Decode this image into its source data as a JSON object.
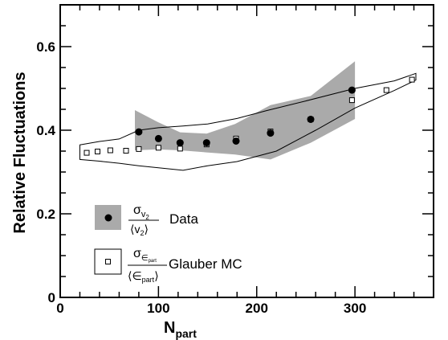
{
  "chart_data": {
    "type": "scatter",
    "xlabel": "N",
    "xlabel_sub": "part",
    "ylabel": "Relative Fluctuations",
    "xlim": [
      0,
      380
    ],
    "ylim": [
      0,
      0.7
    ],
    "x_ticks": [
      0,
      100,
      200,
      300
    ],
    "x_tick_labels": [
      "0",
      "100",
      "200",
      "300"
    ],
    "y_ticks": [
      0,
      0.2,
      0.4,
      0.6
    ],
    "y_tick_labels": [
      "0",
      "0.2",
      "0.4",
      "0.6"
    ],
    "series": [
      {
        "name": "Data",
        "marker": "filled-circle",
        "points": [
          {
            "x": 80,
            "y": 0.396
          },
          {
            "x": 100,
            "y": 0.38
          },
          {
            "x": 122,
            "y": 0.37
          },
          {
            "x": 149,
            "y": 0.37
          },
          {
            "x": 179,
            "y": 0.374
          },
          {
            "x": 214,
            "y": 0.393
          },
          {
            "x": 255,
            "y": 0.426
          },
          {
            "x": 297,
            "y": 0.496
          }
        ],
        "band_upper": [
          {
            "x": 76,
            "y": 0.448
          },
          {
            "x": 99,
            "y": 0.42
          },
          {
            "x": 122,
            "y": 0.395
          },
          {
            "x": 149,
            "y": 0.392
          },
          {
            "x": 178,
            "y": 0.415
          },
          {
            "x": 214,
            "y": 0.46
          },
          {
            "x": 255,
            "y": 0.482
          },
          {
            "x": 300,
            "y": 0.565
          }
        ],
        "band_lower": [
          {
            "x": 76,
            "y": 0.352
          },
          {
            "x": 99,
            "y": 0.354
          },
          {
            "x": 122,
            "y": 0.352
          },
          {
            "x": 149,
            "y": 0.347
          },
          {
            "x": 178,
            "y": 0.342
          },
          {
            "x": 214,
            "y": 0.33
          },
          {
            "x": 255,
            "y": 0.37
          },
          {
            "x": 300,
            "y": 0.427
          }
        ],
        "color": "#aaaaaa"
      },
      {
        "name": "Glauber MC",
        "marker": "open-square",
        "points": [
          {
            "x": 27,
            "y": 0.346
          },
          {
            "x": 38,
            "y": 0.349
          },
          {
            "x": 51,
            "y": 0.352
          },
          {
            "x": 67,
            "y": 0.351
          },
          {
            "x": 80,
            "y": 0.355
          },
          {
            "x": 100,
            "y": 0.358
          },
          {
            "x": 122,
            "y": 0.356
          },
          {
            "x": 149,
            "y": 0.366
          },
          {
            "x": 179,
            "y": 0.38
          },
          {
            "x": 214,
            "y": 0.397
          },
          {
            "x": 255,
            "y": 0.426
          },
          {
            "x": 297,
            "y": 0.472
          },
          {
            "x": 332,
            "y": 0.496
          },
          {
            "x": 358,
            "y": 0.521
          }
        ],
        "band_upper": [
          {
            "x": 20,
            "y": 0.365
          },
          {
            "x": 40,
            "y": 0.373
          },
          {
            "x": 60,
            "y": 0.379
          },
          {
            "x": 80,
            "y": 0.4
          },
          {
            "x": 100,
            "y": 0.406
          },
          {
            "x": 125,
            "y": 0.41
          },
          {
            "x": 150,
            "y": 0.415
          },
          {
            "x": 180,
            "y": 0.428
          },
          {
            "x": 210,
            "y": 0.447
          },
          {
            "x": 250,
            "y": 0.47
          },
          {
            "x": 300,
            "y": 0.5
          },
          {
            "x": 340,
            "y": 0.518
          },
          {
            "x": 362,
            "y": 0.536
          }
        ],
        "band_lower": [
          {
            "x": 362,
            "y": 0.52
          },
          {
            "x": 340,
            "y": 0.495
          },
          {
            "x": 300,
            "y": 0.453
          },
          {
            "x": 260,
            "y": 0.4
          },
          {
            "x": 220,
            "y": 0.35
          },
          {
            "x": 180,
            "y": 0.325
          },
          {
            "x": 150,
            "y": 0.315
          },
          {
            "x": 125,
            "y": 0.304
          },
          {
            "x": 100,
            "y": 0.31
          },
          {
            "x": 80,
            "y": 0.315
          },
          {
            "x": 60,
            "y": 0.321
          },
          {
            "x": 40,
            "y": 0.326
          },
          {
            "x": 20,
            "y": 0.33
          }
        ]
      }
    ],
    "legend": {
      "position": "bottom-left",
      "entries": [
        {
          "label": "Data",
          "frac_num": "σ",
          "frac_num_sub": "v",
          "frac_num_subsub": "2",
          "frac_den": "⟨v",
          "frac_den_sub": "2",
          "frac_den_close": "⟩"
        },
        {
          "label": "Glauber MC",
          "frac_num": "σ",
          "frac_num_sub": "∈",
          "frac_num_subsub": "part",
          "frac_den": "⟨∈",
          "frac_den_sub": "part",
          "frac_den_close": "⟩"
        }
      ]
    }
  }
}
